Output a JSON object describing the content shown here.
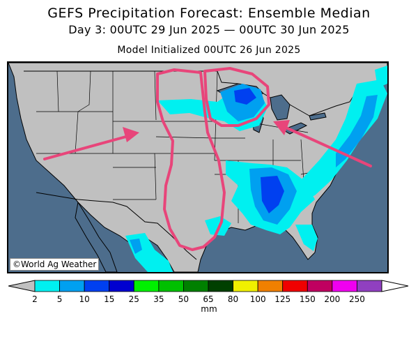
{
  "header": {
    "title": "GEFS Precipitation Forecast: Ensemble Median",
    "period": "Day 3: 00UTC 29 Jun 2025 — 00UTC 30 Jun 2025",
    "init": "Model Initialized 00UTC 26 Jun 2025"
  },
  "map": {
    "credit": "©World Ag Weather",
    "colors": {
      "ocean": "#4d6d8c",
      "land": "#c0c0c0",
      "border": "#000000",
      "annotation": "#e8457a"
    }
  },
  "colorbar": {
    "units": "mm",
    "ticks": [
      "2",
      "5",
      "10",
      "15",
      "25",
      "35",
      "50",
      "65",
      "80",
      "100",
      "125",
      "150",
      "200",
      "250"
    ],
    "colors": [
      "#00f0f0",
      "#00a0f0",
      "#0040f0",
      "#0000d0",
      "#00f000",
      "#00c000",
      "#008000",
      "#004000",
      "#f0f000",
      "#f08000",
      "#f00000",
      "#c00060",
      "#f000f0",
      "#9040c0"
    ]
  }
}
